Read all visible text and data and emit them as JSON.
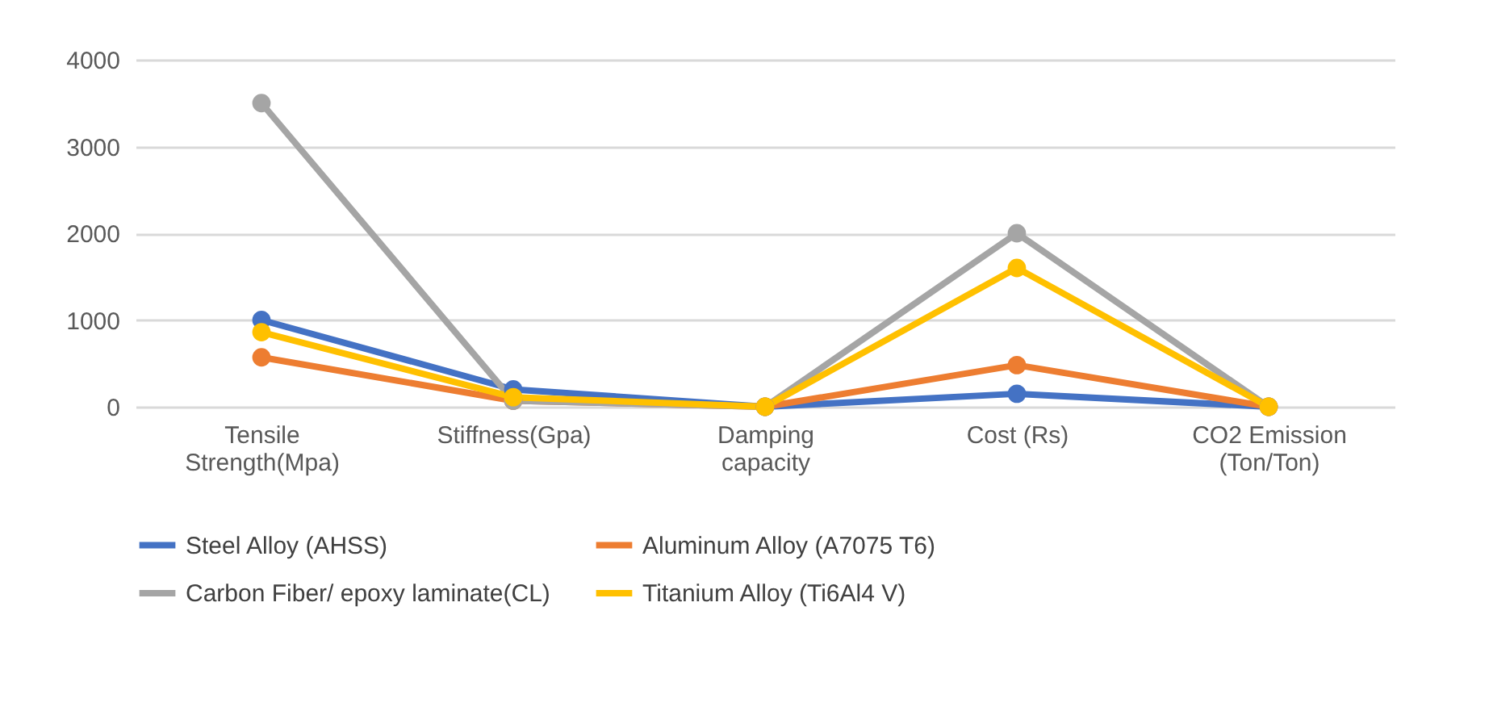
{
  "chart_data": {
    "type": "line",
    "categories": [
      "Tensile Strength(Mpa)",
      "Stiffness(Gpa)",
      "Damping capacity",
      "Cost (Rs)",
      "CO2 Emission (Ton/Ton)"
    ],
    "series": [
      {
        "name": "Steel Alloy (AHSS)",
        "color": "#4472c4",
        "values": [
          1000,
          200,
          0,
          150,
          0
        ]
      },
      {
        "name": "Aluminum Alloy (A7075 T6)",
        "color": "#ed7d31",
        "values": [
          570,
          70,
          0,
          480,
          0
        ]
      },
      {
        "name": "Carbon Fiber/ epoxy laminate(CL)",
        "color": "#a5a5a5",
        "values": [
          3500,
          70,
          0,
          2000,
          0
        ]
      },
      {
        "name": "Titanium Alloy (Ti6Al4 V)",
        "color": "#ffc000",
        "values": [
          860,
          110,
          0,
          1600,
          0
        ]
      }
    ],
    "ylim": [
      0,
      4000
    ],
    "yticks": [
      0,
      1000,
      2000,
      3000,
      4000
    ],
    "grid": "y",
    "legend": "bottom",
    "marker": "circle",
    "line_style": "solid"
  }
}
